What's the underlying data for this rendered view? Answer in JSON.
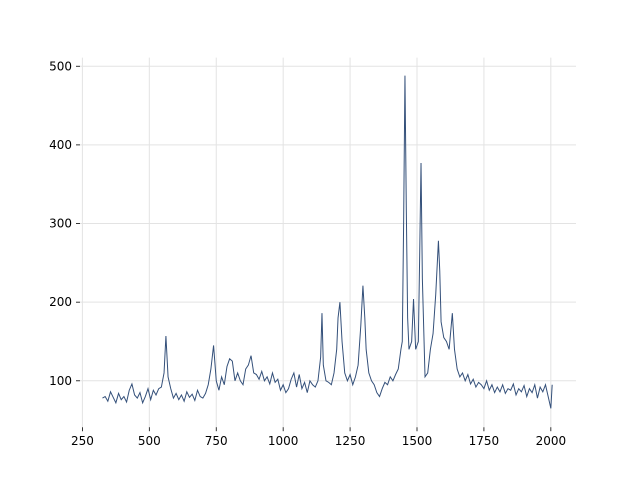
{
  "chart_data": {
    "type": "line",
    "x": [
      325,
      335,
      345,
      355,
      365,
      375,
      385,
      395,
      405,
      415,
      425,
      435,
      445,
      455,
      465,
      475,
      485,
      495,
      505,
      515,
      525,
      535,
      545,
      555,
      562,
      570,
      580,
      590,
      600,
      610,
      620,
      630,
      640,
      650,
      660,
      670,
      680,
      690,
      700,
      710,
      720,
      730,
      740,
      750,
      760,
      770,
      780,
      790,
      800,
      810,
      820,
      830,
      840,
      850,
      860,
      870,
      880,
      890,
      900,
      910,
      920,
      930,
      940,
      950,
      960,
      970,
      980,
      990,
      1000,
      1010,
      1020,
      1030,
      1040,
      1050,
      1060,
      1070,
      1080,
      1090,
      1100,
      1110,
      1120,
      1130,
      1140,
      1145,
      1150,
      1160,
      1170,
      1180,
      1190,
      1200,
      1205,
      1212,
      1220,
      1230,
      1240,
      1250,
      1260,
      1270,
      1280,
      1290,
      1298,
      1305,
      1310,
      1320,
      1330,
      1340,
      1350,
      1360,
      1370,
      1380,
      1390,
      1400,
      1410,
      1420,
      1430,
      1440,
      1445,
      1450,
      1455,
      1460,
      1465,
      1470,
      1480,
      1487,
      1495,
      1505,
      1510,
      1515,
      1520,
      1530,
      1540,
      1550,
      1560,
      1570,
      1580,
      1585,
      1590,
      1600,
      1610,
      1620,
      1632,
      1640,
      1650,
      1660,
      1670,
      1680,
      1690,
      1700,
      1710,
      1720,
      1730,
      1740,
      1750,
      1760,
      1770,
      1780,
      1790,
      1800,
      1810,
      1820,
      1830,
      1840,
      1850,
      1860,
      1870,
      1880,
      1890,
      1900,
      1910,
      1920,
      1930,
      1940,
      1950,
      1960,
      1970,
      1980,
      1990,
      2000,
      2005
    ],
    "series": [
      {
        "color": "#34507a",
        "values": [
          78,
          80,
          74,
          86,
          79,
          72,
          84,
          76,
          80,
          73,
          88,
          96,
          82,
          78,
          85,
          72,
          80,
          90,
          76,
          88,
          82,
          90,
          92,
          110,
          157,
          105,
          90,
          78,
          84,
          76,
          82,
          74,
          86,
          79,
          83,
          75,
          88,
          80,
          78,
          84,
          95,
          115,
          145,
          100,
          88,
          105,
          95,
          118,
          128,
          125,
          100,
          110,
          100,
          95,
          115,
          120,
          132,
          110,
          108,
          102,
          112,
          100,
          105,
          96,
          110,
          98,
          102,
          88,
          95,
          85,
          90,
          102,
          110,
          92,
          108,
          90,
          98,
          85,
          100,
          95,
          92,
          100,
          130,
          186,
          120,
          100,
          98,
          95,
          110,
          140,
          180,
          200,
          150,
          110,
          100,
          108,
          95,
          105,
          120,
          170,
          221,
          180,
          140,
          110,
          100,
          95,
          85,
          80,
          90,
          98,
          95,
          105,
          100,
          108,
          115,
          140,
          150,
          300,
          488,
          320,
          180,
          140,
          150,
          204,
          140,
          150,
          260,
          377,
          230,
          105,
          110,
          140,
          160,
          210,
          278,
          240,
          175,
          155,
          150,
          140,
          186,
          140,
          115,
          105,
          110,
          100,
          108,
          96,
          102,
          92,
          98,
          95,
          90,
          100,
          88,
          95,
          85,
          92,
          86,
          95,
          84,
          90,
          88,
          96,
          82,
          90,
          86,
          94,
          80,
          90,
          85,
          95,
          78,
          92,
          86,
          95,
          80,
          65,
          95
        ]
      }
    ],
    "xlim": [
      241,
      2094
    ],
    "ylim": [
      41,
      511
    ],
    "xticks": [
      250,
      500,
      750,
      1000,
      1250,
      1500,
      1750,
      2000
    ],
    "yticks": [
      100,
      200,
      300,
      400,
      500
    ],
    "grid": true
  }
}
